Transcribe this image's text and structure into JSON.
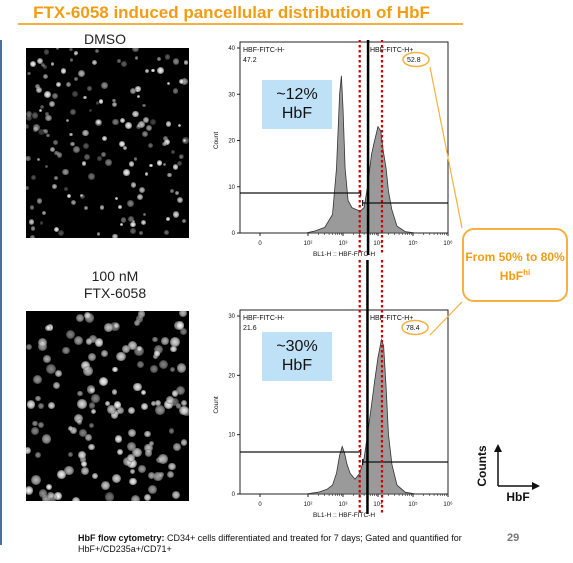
{
  "title": "FTX-6058 induced pancellular distribution of HbF",
  "colors": {
    "accent": "#f39c12",
    "gate_line": "#cc0000",
    "hist_fill": "#9a9a9a",
    "hbf_box": "#bfe1f7"
  },
  "conditions": [
    {
      "label_lines": [
        "DMSO"
      ]
    },
    {
      "label_lines": [
        "100 nM",
        "FTX-6058"
      ]
    }
  ],
  "chart_data": [
    {
      "type": "area",
      "panel": "DMSO",
      "xlabel": "BL1-H :: HBF-FITC-H",
      "ylabel": "Count",
      "xscale": "log",
      "ylim": [
        0,
        40
      ],
      "y_ticks": [
        0,
        10,
        20,
        30,
        40
      ],
      "x_ticks": [
        "0",
        "10²",
        "10³",
        "10⁴",
        "10⁵",
        "10⁶"
      ],
      "gates": [
        {
          "name": "HBF-FITC-H-",
          "value": "47.2"
        },
        {
          "name": "HBF-FITC-H+",
          "value": "52.8"
        }
      ],
      "annotation_lines": [
        "~12%",
        "HbF"
      ],
      "curve": [
        [
          80,
          0
        ],
        [
          150,
          0.4
        ],
        [
          300,
          1.2
        ],
        [
          500,
          4
        ],
        [
          650,
          14
        ],
        [
          800,
          30
        ],
        [
          900,
          34
        ],
        [
          1000,
          27
        ],
        [
          1150,
          14
        ],
        [
          1400,
          7
        ],
        [
          1800,
          5.5
        ],
        [
          2500,
          5
        ],
        [
          3200,
          4.8
        ],
        [
          4000,
          5.5
        ],
        [
          5000,
          10
        ],
        [
          6500,
          17
        ],
        [
          8000,
          20
        ],
        [
          10000,
          23
        ],
        [
          12000,
          22
        ],
        [
          14000,
          18
        ],
        [
          17000,
          14
        ],
        [
          20000,
          9
        ],
        [
          25000,
          5
        ],
        [
          35000,
          1.5
        ],
        [
          60000,
          0.3
        ],
        [
          120000,
          0
        ]
      ]
    },
    {
      "type": "area",
      "panel": "100 nM FTX-6058",
      "xlabel": "BL1-H :: HBF-FITC-H",
      "ylabel": "Count",
      "xscale": "log",
      "ylim": [
        0,
        30
      ],
      "y_ticks": [
        0,
        10,
        20,
        30
      ],
      "x_ticks": [
        "0",
        "10²",
        "10³",
        "10⁴",
        "10⁵",
        "10⁶"
      ],
      "gates": [
        {
          "name": "HBF-FITC-H-",
          "value": "21.6"
        },
        {
          "name": "HBF-FITC-H+",
          "value": "78.4"
        }
      ],
      "annotation_lines": [
        "~30%",
        "HbF"
      ],
      "curve": [
        [
          80,
          0
        ],
        [
          200,
          0.3
        ],
        [
          350,
          0.8
        ],
        [
          500,
          1.5
        ],
        [
          650,
          3.5
        ],
        [
          800,
          6.5
        ],
        [
          950,
          8
        ],
        [
          1100,
          7
        ],
        [
          1300,
          5
        ],
        [
          1600,
          3.5
        ],
        [
          2200,
          2.5
        ],
        [
          3000,
          3.5
        ],
        [
          4000,
          6
        ],
        [
          5000,
          10
        ],
        [
          6500,
          15
        ],
        [
          8000,
          19
        ],
        [
          10000,
          23
        ],
        [
          12500,
          26
        ],
        [
          14500,
          25
        ],
        [
          17000,
          18
        ],
        [
          20000,
          10
        ],
        [
          25000,
          5
        ],
        [
          35000,
          1.5
        ],
        [
          60000,
          0.3
        ],
        [
          120000,
          0
        ]
      ]
    }
  ],
  "callout": {
    "text": "From 50% to 80% HbF",
    "superscript": "hi"
  },
  "legend": {
    "y_label": "Counts",
    "x_label": "HbF"
  },
  "caption": {
    "bold": "HbF flow cytometry:",
    "text": " CD34+ cells differentiated and treated for 7 days; Gated and quantified for HbF+/CD235a+/CD71+"
  },
  "page_number": "29"
}
